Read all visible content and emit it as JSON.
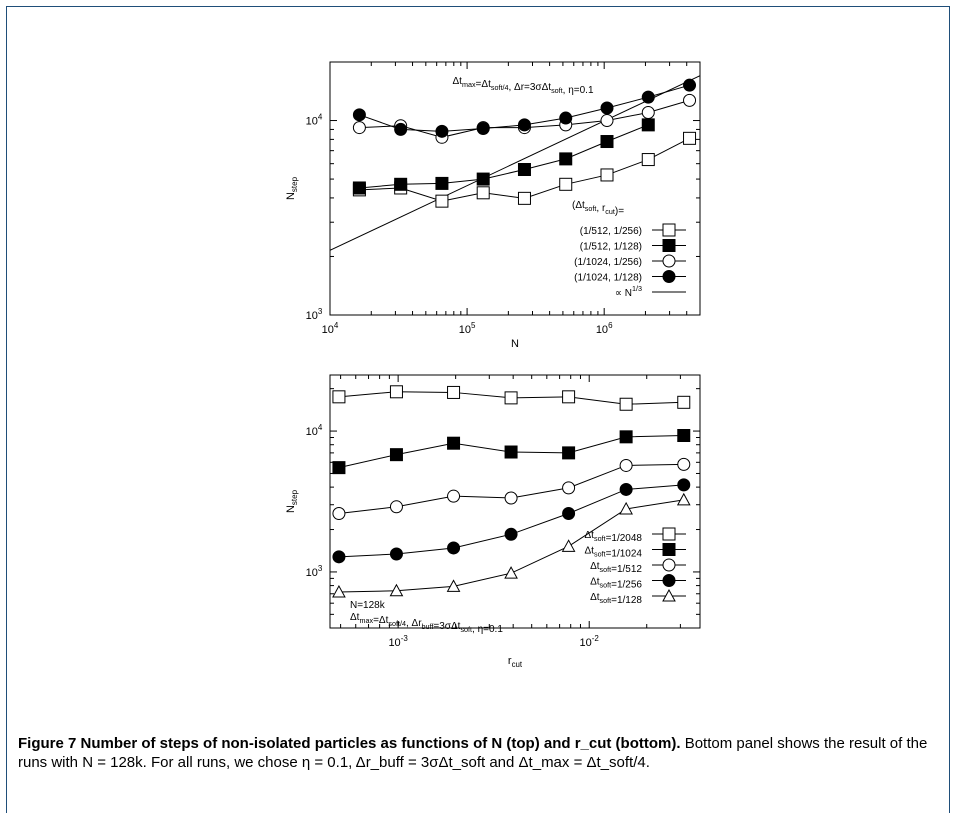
{
  "chart_data": [
    {
      "type": "line",
      "x_scale": "log",
      "y_scale": "log",
      "xlim": [
        10000,
        5000000
      ],
      "ylim": [
        1000,
        20000
      ],
      "xlabel": "N",
      "ylabel_main": "N",
      "ylabel_sub": "step",
      "x_ticks": [
        {
          "v": 10000,
          "b": "10",
          "e": "4"
        },
        {
          "v": 100000,
          "b": "10",
          "e": "5"
        },
        {
          "v": 1000000,
          "b": "10",
          "e": "6"
        }
      ],
      "y_ticks": [
        {
          "v": 1000,
          "b": "10",
          "e": "3"
        },
        {
          "v": 10000,
          "b": "10",
          "e": "4"
        }
      ],
      "annotation": "Δt_max=Δt_soft/4, Δr=3σΔt_soft, η=0.1",
      "legend_title": "(Δt_soft, r_cut)=",
      "legend_position": "right",
      "x": [
        16384,
        32768,
        65536,
        131072,
        262144,
        524288,
        1048576,
        2097152,
        4194304
      ],
      "series": [
        {
          "name": "(1/512, 1/256)",
          "marker": "open-square",
          "values": [
            4400,
            4500,
            3850,
            4250,
            3980,
            4700,
            5250,
            6300,
            8100
          ]
        },
        {
          "name": "(1/512, 1/128)",
          "marker": "filled-square",
          "values": [
            4500,
            4700,
            4750,
            5000,
            5600,
            6350,
            7800,
            9500,
            null
          ]
        },
        {
          "name": "(1/1024, 1/256)",
          "marker": "open-circle",
          "values": [
            9200,
            9400,
            8200,
            9200,
            9200,
            9500,
            10000,
            11000,
            12700
          ]
        },
        {
          "name": "(1/1024, 1/128)",
          "marker": "filled-circle",
          "values": [
            10700,
            9000,
            8800,
            9100,
            9500,
            10300,
            11600,
            13200,
            15200
          ]
        }
      ],
      "power_law": {
        "name": "∝ N^1/3",
        "x_start": 10000,
        "y_start": 2150,
        "x_end": 5000000,
        "y_end": 17000
      }
    },
    {
      "type": "line",
      "x_scale": "log",
      "y_scale": "log",
      "xlim": [
        0.00044,
        0.038
      ],
      "ylim": [
        400,
        25000
      ],
      "xlabel": "r_cut",
      "ylabel_main": "N",
      "ylabel_sub": "step",
      "x_ticks": [
        {
          "v": 0.001,
          "b": "10",
          "e": "-3"
        },
        {
          "v": 0.01,
          "b": "10",
          "e": "-2"
        }
      ],
      "y_ticks": [
        {
          "v": 1000,
          "b": "10",
          "e": "3"
        },
        {
          "v": 10000,
          "b": "10",
          "e": "4"
        }
      ],
      "annotation_line1": "N=128k",
      "annotation_line2": "Δt_max=Δt_soft/4, Δr_buff=3σΔt_soft, η=0.1",
      "legend_position": "right",
      "x": [
        0.00049,
        0.00098,
        0.00195,
        0.0039,
        0.0078,
        0.0156,
        0.03125
      ],
      "series": [
        {
          "name": "Δt_soft=1/2048",
          "marker": "open-square",
          "values": [
            17500,
            19000,
            18800,
            17200,
            17500,
            15500,
            16000
          ]
        },
        {
          "name": "Δt_soft=1/1024",
          "marker": "filled-square",
          "values": [
            5500,
            6800,
            8200,
            7100,
            7000,
            9100,
            9300
          ]
        },
        {
          "name": "Δt_soft=1/512",
          "marker": "open-circle",
          "values": [
            2600,
            2900,
            3450,
            3350,
            3950,
            5700,
            5800
          ]
        },
        {
          "name": "Δt_soft=1/256",
          "marker": "filled-circle",
          "values": [
            1280,
            1340,
            1480,
            1850,
            2600,
            3850,
            4150
          ]
        },
        {
          "name": "Δt_soft=1/128",
          "marker": "open-triangle",
          "values": [
            720,
            735,
            790,
            980,
            1520,
            2800,
            3250
          ]
        }
      ]
    }
  ],
  "caption": {
    "bold_text": "Figure 7 Number of steps of non-isolated particles as functions of N (top) and r_cut (bottom).",
    "body_text": "Bottom panel shows the result of the runs with N = 128k. For all runs, we chose η = 0.1, Δr_buff = 3σΔt_soft and Δt_max = Δt_soft/4."
  }
}
